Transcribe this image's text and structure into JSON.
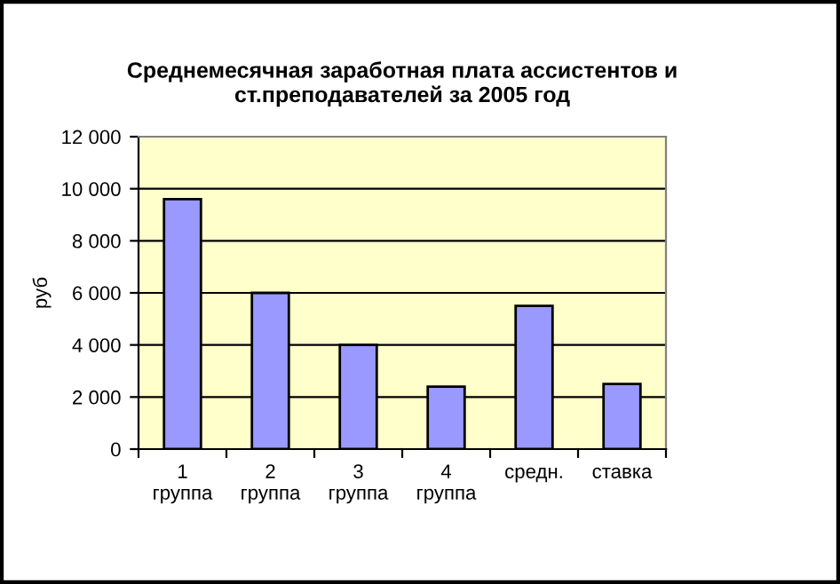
{
  "chart_data": {
    "type": "bar",
    "title": "Среднемесячная заработная плата ассистентов и\nст.преподавателей за 2005 год",
    "ylabel": "руб",
    "categories": [
      "1\nгруппа",
      "2\nгруппа",
      "3\nгруппа",
      "4\nгруппа",
      "средн.",
      "ставка"
    ],
    "values": [
      9600,
      6000,
      4000,
      2400,
      5500,
      2500
    ],
    "color": "#9999ff",
    "ylim": [
      0,
      12000
    ],
    "yticks": [
      {
        "value": 0,
        "label": "0"
      },
      {
        "value": 2000,
        "label": "2 000"
      },
      {
        "value": 4000,
        "label": "4 000"
      },
      {
        "value": 6000,
        "label": "6 000"
      },
      {
        "value": 8000,
        "label": "8 000"
      },
      {
        "value": 10000,
        "label": "10 000"
      },
      {
        "value": 12000,
        "label": "12 000"
      }
    ],
    "grid": "y",
    "legend": false
  }
}
